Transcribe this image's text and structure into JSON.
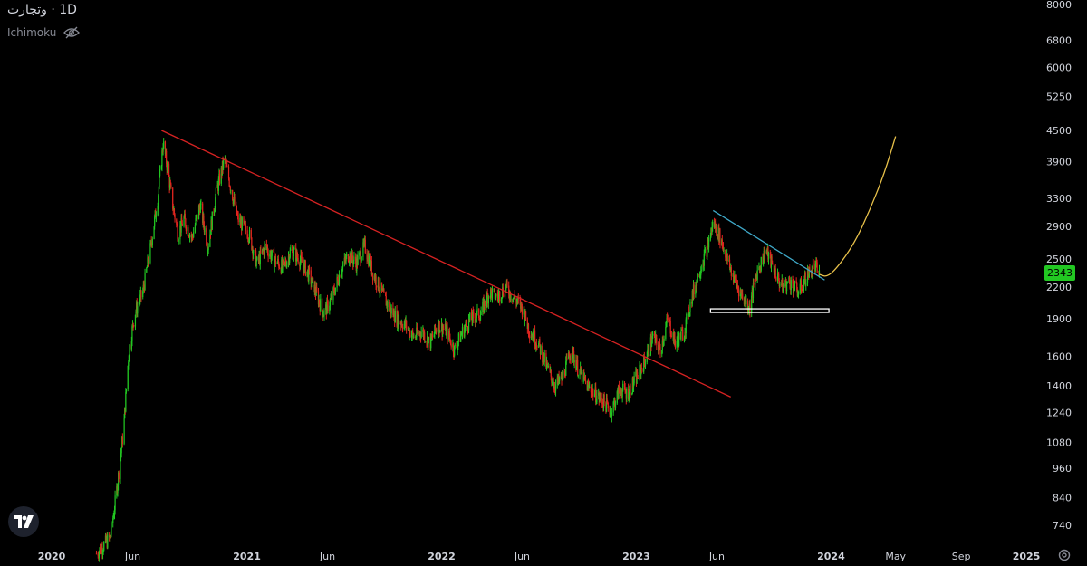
{
  "header": {
    "symbol": "وتجارت",
    "separator": "·",
    "interval": "1D",
    "indicator": "Ichimoku"
  },
  "icons": {
    "hide_indicator": "eye-off-icon",
    "logo": "tradingview-logo-icon",
    "settings": "gear-icon"
  },
  "colors": {
    "background": "#000000",
    "candle_up": "#22c722",
    "candle_down": "#e0251f",
    "resistance_line": "#d62222",
    "recent_trendline": "#3fa9c9",
    "projection_curve": "#e8c14a",
    "support_box": "#ffffff",
    "axis_text": "#d1d4dc"
  },
  "price_tag": {
    "value": "2343"
  },
  "chart_data": {
    "type": "candlestick",
    "timeframe": "1D",
    "y_scale": "log",
    "ylim": [
      650,
      8000
    ],
    "y_ticks": [
      8000,
      6800,
      6000,
      5250,
      4500,
      3900,
      3300,
      2900,
      2500,
      2200,
      1900,
      1600,
      1400,
      1240,
      1080,
      960,
      840,
      740
    ],
    "y_tick_labels": [
      "8000",
      "6800",
      "6000",
      "5250",
      "4500",
      "3900",
      "3300",
      "2900",
      "2500",
      "2200",
      "1900",
      "1600",
      "1400",
      "1240",
      "1080",
      "960",
      "840",
      "740"
    ],
    "x_labels": [
      {
        "label": "2020",
        "date": "2020-01-01",
        "bold": true
      },
      {
        "label": "Jun",
        "date": "2020-06-01",
        "bold": false
      },
      {
        "label": "2021",
        "date": "2021-01-01",
        "bold": true
      },
      {
        "label": "Jun",
        "date": "2021-06-01",
        "bold": false
      },
      {
        "label": "2022",
        "date": "2022-01-01",
        "bold": true
      },
      {
        "label": "Jun",
        "date": "2022-06-01",
        "bold": false
      },
      {
        "label": "2023",
        "date": "2023-01-01",
        "bold": true
      },
      {
        "label": "Jun",
        "date": "2023-06-01",
        "bold": false
      },
      {
        "label": "2024",
        "date": "2024-01-01",
        "bold": true
      },
      {
        "label": "May",
        "date": "2024-05-01",
        "bold": false
      },
      {
        "label": "Sep",
        "date": "2024-09-01",
        "bold": false
      },
      {
        "label": "2025",
        "date": "2025-01-01",
        "bold": true
      }
    ],
    "price_path": [
      [
        "2020-03-25",
        650
      ],
      [
        "2020-04-20",
        700
      ],
      [
        "2020-05-01",
        850
      ],
      [
        "2020-05-15",
        1150
      ],
      [
        "2020-05-25",
        1650
      ],
      [
        "2020-06-05",
        1950
      ],
      [
        "2020-06-20",
        2150
      ],
      [
        "2020-07-05",
        2650
      ],
      [
        "2020-07-18",
        3300
      ],
      [
        "2020-07-28",
        4250
      ],
      [
        "2020-08-05",
        3800
      ],
      [
        "2020-08-15",
        3200
      ],
      [
        "2020-08-25",
        2800
      ],
      [
        "2020-09-05",
        3000
      ],
      [
        "2020-09-20",
        2750
      ],
      [
        "2020-10-05",
        3200
      ],
      [
        "2020-10-20",
        2650
      ],
      [
        "2020-11-05",
        3400
      ],
      [
        "2020-11-20",
        3950
      ],
      [
        "2020-12-01",
        3500
      ],
      [
        "2020-12-15",
        3000
      ],
      [
        "2021-01-05",
        2800
      ],
      [
        "2021-01-20",
        2450
      ],
      [
        "2021-02-05",
        2650
      ],
      [
        "2021-02-20",
        2500
      ],
      [
        "2021-03-10",
        2400
      ],
      [
        "2021-03-25",
        2600
      ],
      [
        "2021-04-10",
        2500
      ],
      [
        "2021-04-25",
        2350
      ],
      [
        "2021-05-10",
        2150
      ],
      [
        "2021-05-25",
        1950
      ],
      [
        "2021-06-10",
        2100
      ],
      [
        "2021-06-25",
        2350
      ],
      [
        "2021-07-10",
        2550
      ],
      [
        "2021-07-25",
        2450
      ],
      [
        "2021-08-10",
        2650
      ],
      [
        "2021-08-25",
        2350
      ],
      [
        "2021-09-10",
        2150
      ],
      [
        "2021-09-25",
        2000
      ],
      [
        "2021-10-10",
        1900
      ],
      [
        "2021-10-25",
        1850
      ],
      [
        "2021-11-10",
        1750
      ],
      [
        "2021-11-25",
        1800
      ],
      [
        "2021-12-10",
        1700
      ],
      [
        "2021-12-25",
        1850
      ],
      [
        "2022-01-10",
        1800
      ],
      [
        "2022-01-25",
        1650
      ],
      [
        "2022-02-10",
        1800
      ],
      [
        "2022-02-25",
        1900
      ],
      [
        "2022-03-15",
        1950
      ],
      [
        "2022-04-01",
        2150
      ],
      [
        "2022-04-15",
        2100
      ],
      [
        "2022-05-01",
        2200
      ],
      [
        "2022-05-15",
        2100
      ],
      [
        "2022-06-01",
        2000
      ],
      [
        "2022-06-15",
        1800
      ],
      [
        "2022-07-01",
        1700
      ],
      [
        "2022-07-15",
        1550
      ],
      [
        "2022-08-01",
        1400
      ],
      [
        "2022-08-15",
        1450
      ],
      [
        "2022-09-01",
        1650
      ],
      [
        "2022-09-15",
        1500
      ],
      [
        "2022-10-01",
        1400
      ],
      [
        "2022-10-15",
        1350
      ],
      [
        "2022-11-01",
        1300
      ],
      [
        "2022-11-15",
        1250
      ],
      [
        "2022-12-01",
        1380
      ],
      [
        "2022-12-15",
        1350
      ],
      [
        "2023-01-01",
        1450
      ],
      [
        "2023-01-15",
        1550
      ],
      [
        "2023-02-01",
        1750
      ],
      [
        "2023-02-15",
        1650
      ],
      [
        "2023-03-01",
        1900
      ],
      [
        "2023-03-15",
        1700
      ],
      [
        "2023-04-01",
        1800
      ],
      [
        "2023-04-15",
        2100
      ],
      [
        "2023-05-01",
        2400
      ],
      [
        "2023-05-15",
        2650
      ],
      [
        "2023-05-25",
        2950
      ],
      [
        "2023-06-05",
        2800
      ],
      [
        "2023-06-20",
        2500
      ],
      [
        "2023-07-05",
        2250
      ],
      [
        "2023-07-20",
        2100
      ],
      [
        "2023-08-01",
        2000
      ],
      [
        "2023-08-15",
        2350
      ],
      [
        "2023-09-01",
        2600
      ],
      [
        "2023-09-15",
        2400
      ],
      [
        "2023-10-01",
        2200
      ],
      [
        "2023-10-15",
        2250
      ],
      [
        "2023-11-01",
        2150
      ],
      [
        "2023-11-15",
        2300
      ],
      [
        "2023-12-01",
        2420
      ],
      [
        "2023-12-10",
        2343
      ]
    ],
    "drawings": {
      "resistance_line": {
        "start": [
          "2020-07-25",
          4500
        ],
        "end": [
          "2023-06-27",
          1330
        ]
      },
      "recent_trendline": {
        "start": [
          "2023-05-25",
          3120
        ],
        "end": [
          "2023-12-20",
          2270
        ]
      },
      "support_box": {
        "x0": "2023-05-20",
        "x1": "2023-12-28",
        "y_high": 1990,
        "y_low": 1960
      },
      "projection_curve": [
        [
          "2023-12-10",
          2330
        ],
        [
          "2023-12-25",
          2300
        ],
        [
          "2024-01-15",
          2420
        ],
        [
          "2024-02-15",
          2700
        ],
        [
          "2024-03-15",
          3150
        ],
        [
          "2024-04-10",
          3700
        ],
        [
          "2024-05-01",
          4380
        ]
      ]
    }
  }
}
